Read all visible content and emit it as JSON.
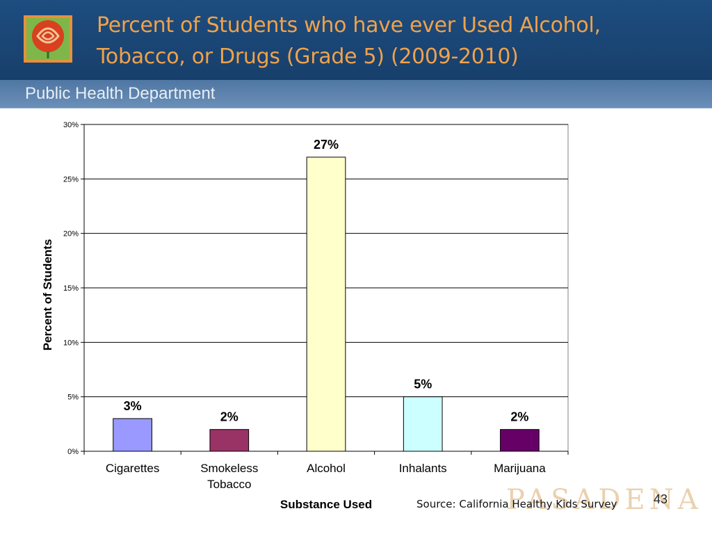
{
  "slide": {
    "title_line1": "Percent of Students who have ever Used Alcohol,",
    "title_line2": "Tobacco, or Drugs (Grade 5) (2009-2010)",
    "subtitle": "Public Health Department",
    "source": "Source: California Healthy Kids Survey",
    "page_number": "43",
    "watermark": "PASADENA",
    "colors": {
      "header_bg": "#1d4d80",
      "subheader_bg": "#5a81ad",
      "title_text": "#f0a24a"
    }
  },
  "chart_data": {
    "type": "bar",
    "title": "",
    "xlabel": "Substance Used",
    "ylabel": "Percent of Students",
    "ylim": [
      0,
      30
    ],
    "yticks": [
      "0%",
      "5%",
      "10%",
      "15%",
      "20%",
      "25%",
      "30%"
    ],
    "ytick_values": [
      0,
      5,
      10,
      15,
      20,
      25,
      30
    ],
    "grid": true,
    "categories": [
      {
        "line1": "Cigarettes",
        "line2": ""
      },
      {
        "line1": "Smokeless",
        "line2": "Tobacco"
      },
      {
        "line1": "Alcohol",
        "line2": ""
      },
      {
        "line1": "Inhalants",
        "line2": ""
      },
      {
        "line1": "Marijuana",
        "line2": ""
      }
    ],
    "values": [
      3,
      2,
      27,
      5,
      2
    ],
    "data_labels": [
      "3%",
      "2%",
      "27%",
      "5%",
      "2%"
    ],
    "bar_colors": [
      "#9999ff",
      "#993366",
      "#ffffcc",
      "#ccffff",
      "#660066"
    ]
  }
}
